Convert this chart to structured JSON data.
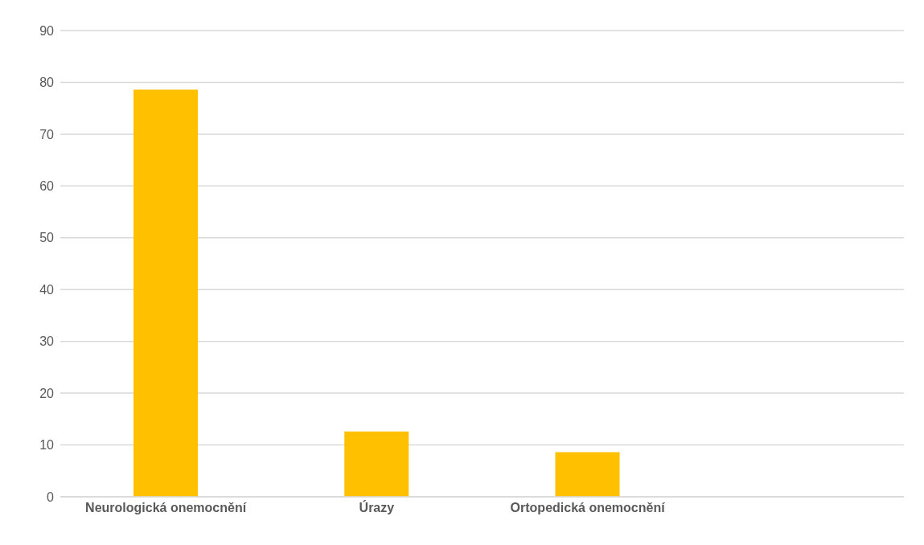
{
  "chart_data": {
    "type": "bar",
    "categories": [
      "Neurologická onemocnění",
      "Úrazy",
      "Ortopedická onemocnění",
      null
    ],
    "values": [
      78.6,
      12.6,
      8.6,
      null
    ],
    "color": "#ffc000",
    "ylim": [
      0,
      90
    ],
    "yticks": [
      0,
      10,
      20,
      30,
      40,
      50,
      60,
      70,
      80,
      90
    ],
    "grid": "y"
  }
}
